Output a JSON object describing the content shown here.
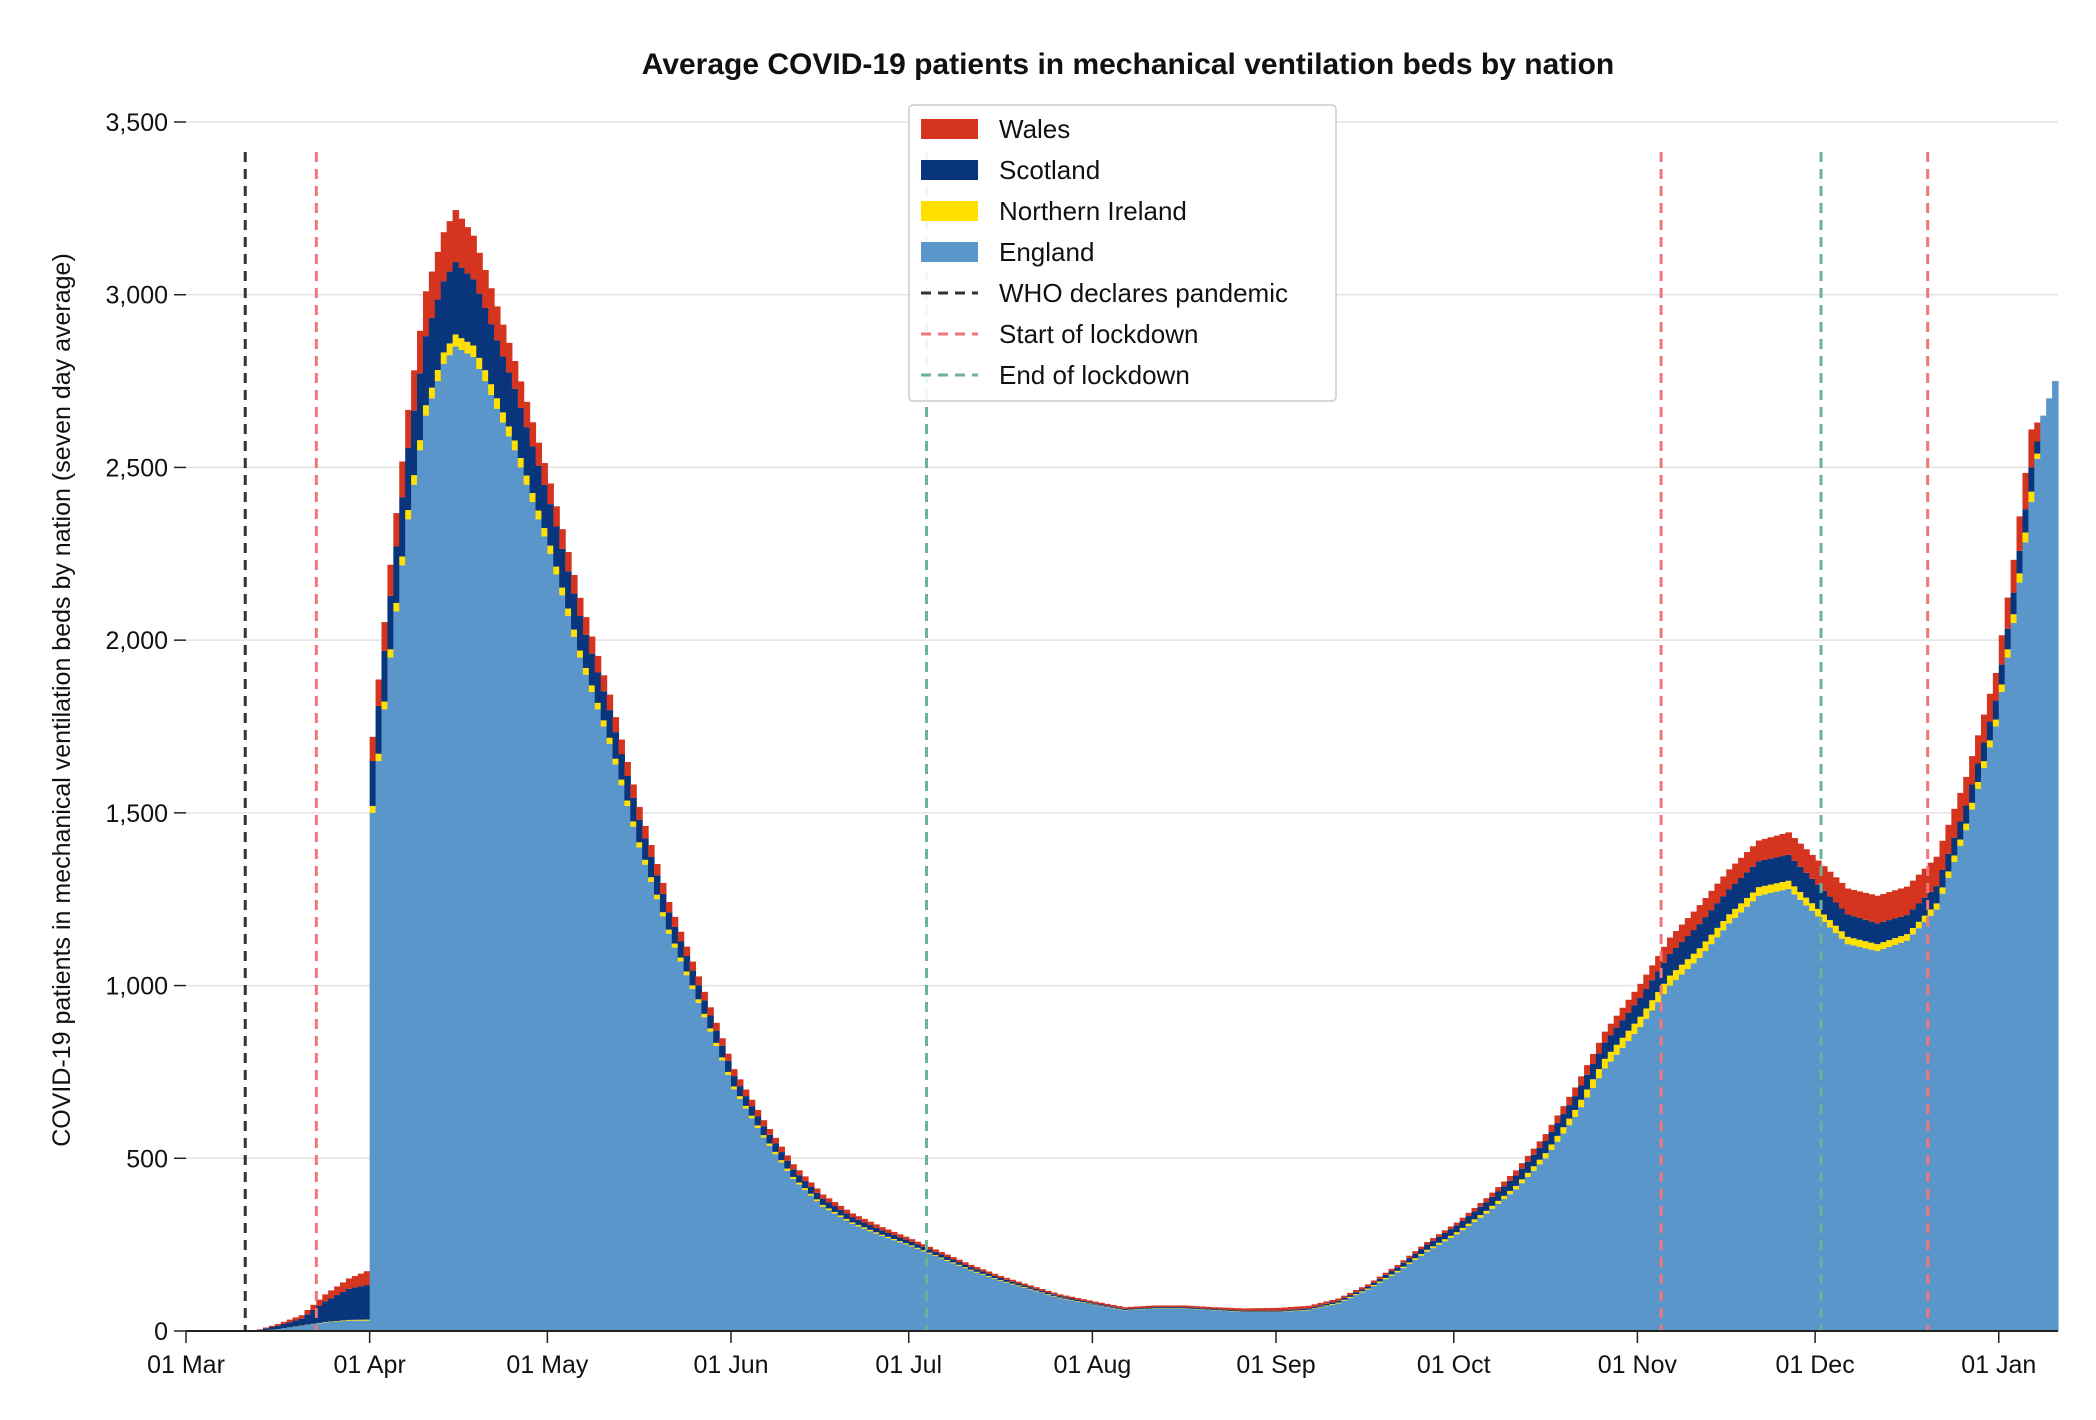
{
  "chart_data": {
    "type": "area",
    "stacked": true,
    "title": "Average COVID-19 patients in mechanical ventilation beds by nation",
    "ylabel": "COVID-19 patients in mechanical ventilation beds by nation (seven day average)",
    "xlabel": "",
    "x_range": [
      "2020-03-01",
      "2021-01-11"
    ],
    "ylim": [
      0,
      3500
    ],
    "yticks": [
      0,
      500,
      1000,
      1500,
      2000,
      2500,
      3000,
      3500
    ],
    "ytick_labels": [
      "0",
      "500",
      "1,000",
      "1,500",
      "2,000",
      "2,500",
      "3,000",
      "3,500"
    ],
    "xticks": [
      "2020-03-01",
      "2020-04-01",
      "2020-05-01",
      "2020-06-01",
      "2020-07-01",
      "2020-08-01",
      "2020-09-01",
      "2020-10-01",
      "2020-11-01",
      "2020-12-01",
      "2021-01-01"
    ],
    "xtick_labels": [
      "01 Mar",
      "01 Apr",
      "01 May",
      "01 Jun",
      "01 Jul",
      "01 Aug",
      "01 Sep",
      "01 Oct",
      "01 Nov",
      "01 Dec",
      "01 Jan"
    ],
    "grid": "horizontal",
    "legend_position": "top-center",
    "series": [
      {
        "name": "England",
        "color": "#5b96cb",
        "points": [
          [
            "2020-03-12",
            0
          ],
          [
            "2020-03-16",
            5
          ],
          [
            "2020-03-20",
            15
          ],
          [
            "2020-03-24",
            25
          ],
          [
            "2020-03-28",
            30
          ],
          [
            "2020-03-31",
            30
          ],
          [
            "2020-04-01",
            1500
          ],
          [
            "2020-04-04",
            1950
          ],
          [
            "2020-04-07",
            2350
          ],
          [
            "2020-04-10",
            2650
          ],
          [
            "2020-04-13",
            2800
          ],
          [
            "2020-04-15",
            2850
          ],
          [
            "2020-04-18",
            2820
          ],
          [
            "2020-04-20",
            2750
          ],
          [
            "2020-04-25",
            2550
          ],
          [
            "2020-05-01",
            2250
          ],
          [
            "2020-05-06",
            1950
          ],
          [
            "2020-05-11",
            1700
          ],
          [
            "2020-05-16",
            1400
          ],
          [
            "2020-05-21",
            1150
          ],
          [
            "2020-05-26",
            950
          ],
          [
            "2020-06-01",
            700
          ],
          [
            "2020-06-06",
            560
          ],
          [
            "2020-06-11",
            440
          ],
          [
            "2020-06-16",
            360
          ],
          [
            "2020-06-21",
            310
          ],
          [
            "2020-06-26",
            275
          ],
          [
            "2020-07-01",
            245
          ],
          [
            "2020-07-06",
            210
          ],
          [
            "2020-07-11",
            175
          ],
          [
            "2020-07-16",
            145
          ],
          [
            "2020-07-21",
            120
          ],
          [
            "2020-07-26",
            95
          ],
          [
            "2020-08-01",
            75
          ],
          [
            "2020-08-06",
            60
          ],
          [
            "2020-08-11",
            65
          ],
          [
            "2020-08-16",
            65
          ],
          [
            "2020-08-21",
            60
          ],
          [
            "2020-08-26",
            55
          ],
          [
            "2020-09-01",
            55
          ],
          [
            "2020-09-06",
            60
          ],
          [
            "2020-09-11",
            80
          ],
          [
            "2020-09-16",
            120
          ],
          [
            "2020-09-21",
            170
          ],
          [
            "2020-09-26",
            230
          ],
          [
            "2020-10-01",
            280
          ],
          [
            "2020-10-06",
            340
          ],
          [
            "2020-10-11",
            410
          ],
          [
            "2020-10-16",
            500
          ],
          [
            "2020-10-21",
            620
          ],
          [
            "2020-10-26",
            760
          ],
          [
            "2020-11-01",
            880
          ],
          [
            "2020-11-06",
            1000
          ],
          [
            "2020-11-11",
            1080
          ],
          [
            "2020-11-16",
            1180
          ],
          [
            "2020-11-21",
            1260
          ],
          [
            "2020-11-26",
            1280
          ],
          [
            "2020-12-01",
            1200
          ],
          [
            "2020-12-06",
            1120
          ],
          [
            "2020-12-11",
            1100
          ],
          [
            "2020-12-16",
            1130
          ],
          [
            "2020-12-21",
            1220
          ],
          [
            "2020-12-26",
            1450
          ],
          [
            "2020-12-31",
            1750
          ],
          [
            "2021-01-03",
            2050
          ],
          [
            "2021-01-06",
            2400
          ],
          [
            "2021-01-08",
            2650
          ],
          [
            "2021-01-10",
            2750
          ]
        ]
      },
      {
        "name": "Northern Ireland",
        "color": "#ffe000",
        "points": [
          [
            "2020-03-12",
            0
          ],
          [
            "2020-03-24",
            1
          ],
          [
            "2020-03-31",
            3
          ],
          [
            "2020-04-01",
            20
          ],
          [
            "2020-04-10",
            30
          ],
          [
            "2020-04-15",
            35
          ],
          [
            "2020-04-25",
            28
          ],
          [
            "2020-05-06",
            20
          ],
          [
            "2020-05-21",
            12
          ],
          [
            "2020-06-01",
            8
          ],
          [
            "2020-06-16",
            5
          ],
          [
            "2020-07-01",
            3
          ],
          [
            "2020-07-21",
            2
          ],
          [
            "2020-08-06",
            1
          ],
          [
            "2020-09-01",
            1
          ],
          [
            "2020-09-16",
            3
          ],
          [
            "2020-10-01",
            6
          ],
          [
            "2020-10-11",
            10
          ],
          [
            "2020-10-21",
            20
          ],
          [
            "2020-10-26",
            28
          ],
          [
            "2020-11-01",
            30
          ],
          [
            "2020-11-11",
            28
          ],
          [
            "2020-11-21",
            25
          ],
          [
            "2020-12-01",
            22
          ],
          [
            "2020-12-11",
            20
          ],
          [
            "2020-12-21",
            18
          ],
          [
            "2020-12-31",
            20
          ],
          [
            "2021-01-06",
            30
          ],
          [
            "2021-01-08",
            0
          ],
          [
            "2021-01-10",
            0
          ]
        ]
      },
      {
        "name": "Scotland",
        "color": "#08357b",
        "points": [
          [
            "2020-03-12",
            0
          ],
          [
            "2020-03-20",
            20
          ],
          [
            "2020-03-24",
            60
          ],
          [
            "2020-03-28",
            90
          ],
          [
            "2020-03-31",
            100
          ],
          [
            "2020-04-01",
            130
          ],
          [
            "2020-04-07",
            180
          ],
          [
            "2020-04-10",
            200
          ],
          [
            "2020-04-15",
            210
          ],
          [
            "2020-04-20",
            180
          ],
          [
            "2020-04-25",
            150
          ],
          [
            "2020-05-01",
            120
          ],
          [
            "2020-05-11",
            80
          ],
          [
            "2020-05-21",
            50
          ],
          [
            "2020-06-01",
            30
          ],
          [
            "2020-06-16",
            18
          ],
          [
            "2020-07-01",
            10
          ],
          [
            "2020-07-21",
            5
          ],
          [
            "2020-08-06",
            3
          ],
          [
            "2020-09-01",
            3
          ],
          [
            "2020-09-16",
            6
          ],
          [
            "2020-10-01",
            20
          ],
          [
            "2020-10-11",
            30
          ],
          [
            "2020-10-21",
            40
          ],
          [
            "2020-11-01",
            55
          ],
          [
            "2020-11-11",
            70
          ],
          [
            "2020-11-21",
            75
          ],
          [
            "2020-11-26",
            75
          ],
          [
            "2020-12-01",
            70
          ],
          [
            "2020-12-11",
            60
          ],
          [
            "2020-12-21",
            50
          ],
          [
            "2020-12-31",
            55
          ],
          [
            "2021-01-06",
            70
          ],
          [
            "2021-01-08",
            0
          ],
          [
            "2021-01-10",
            0
          ]
        ]
      },
      {
        "name": "Wales",
        "color": "#d5341f",
        "points": [
          [
            "2020-03-12",
            0
          ],
          [
            "2020-03-20",
            10
          ],
          [
            "2020-03-24",
            20
          ],
          [
            "2020-03-28",
            30
          ],
          [
            "2020-03-31",
            40
          ],
          [
            "2020-04-01",
            70
          ],
          [
            "2020-04-07",
            110
          ],
          [
            "2020-04-10",
            130
          ],
          [
            "2020-04-15",
            150
          ],
          [
            "2020-04-20",
            110
          ],
          [
            "2020-04-25",
            80
          ],
          [
            "2020-05-01",
            60
          ],
          [
            "2020-05-11",
            45
          ],
          [
            "2020-05-21",
            30
          ],
          [
            "2020-06-01",
            20
          ],
          [
            "2020-06-16",
            12
          ],
          [
            "2020-07-01",
            8
          ],
          [
            "2020-07-21",
            5
          ],
          [
            "2020-08-06",
            5
          ],
          [
            "2020-08-21",
            5
          ],
          [
            "2020-09-01",
            8
          ],
          [
            "2020-09-16",
            6
          ],
          [
            "2020-10-01",
            8
          ],
          [
            "2020-10-11",
            15
          ],
          [
            "2020-10-21",
            25
          ],
          [
            "2020-11-01",
            40
          ],
          [
            "2020-11-11",
            55
          ],
          [
            "2020-11-21",
            60
          ],
          [
            "2020-11-26",
            65
          ],
          [
            "2020-12-01",
            70
          ],
          [
            "2020-12-11",
            80
          ],
          [
            "2020-12-21",
            85
          ],
          [
            "2020-12-31",
            80
          ],
          [
            "2021-01-06",
            110
          ],
          [
            "2021-01-08",
            0
          ],
          [
            "2021-01-10",
            0
          ]
        ]
      }
    ],
    "vlines": [
      {
        "name": "WHO declares pandemic",
        "date": "2020-03-11",
        "color": "#333333"
      },
      {
        "name": "Start of lockdown",
        "date": "2020-03-23",
        "color": "#f0767a"
      },
      {
        "name": "Start of lockdown",
        "date": "2020-11-05",
        "color": "#f0767a"
      },
      {
        "name": "Start of lockdown",
        "date": "2020-12-20",
        "color": "#f0767a"
      },
      {
        "name": "End of lockdown",
        "date": "2020-07-04",
        "color": "#6cb29a"
      },
      {
        "name": "End of lockdown",
        "date": "2020-12-02",
        "color": "#6cb29a"
      }
    ],
    "legend": [
      {
        "label": "Wales",
        "kind": "patch",
        "color": "#d5341f"
      },
      {
        "label": "Scotland",
        "kind": "patch",
        "color": "#08357b"
      },
      {
        "label": "Northern Ireland",
        "kind": "patch",
        "color": "#ffe000"
      },
      {
        "label": "England",
        "kind": "patch",
        "color": "#5b96cb"
      },
      {
        "label": "WHO declares pandemic",
        "kind": "dashed",
        "color": "#333333"
      },
      {
        "label": "Start of lockdown",
        "kind": "dashed",
        "color": "#f0767a"
      },
      {
        "label": "End of lockdown",
        "kind": "dashed",
        "color": "#6cb29a"
      }
    ]
  }
}
